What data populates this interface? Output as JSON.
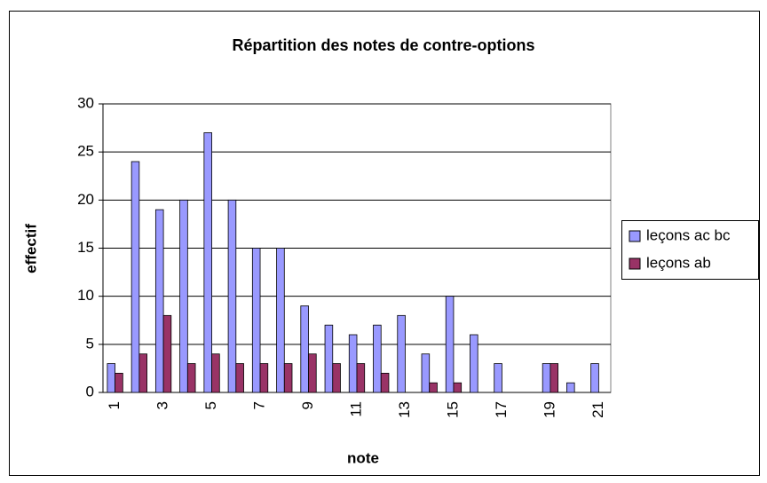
{
  "chart_data": {
    "type": "bar",
    "title": "Répartition des notes de contre-options",
    "x_label": "note",
    "y_label": "effectif",
    "categories": [
      "1",
      null,
      "3",
      null,
      "5",
      null,
      "7",
      null,
      "9",
      null,
      "11",
      null,
      "13",
      null,
      "15",
      null,
      "17",
      null,
      "19",
      null,
      "21"
    ],
    "series": [
      {
        "name": "leçons ac bc",
        "color": "#9999ff",
        "values": [
          3,
          24,
          19,
          20,
          27,
          20,
          15,
          15,
          9,
          7,
          6,
          7,
          8,
          4,
          10,
          6,
          3,
          0,
          3,
          1,
          3
        ]
      },
      {
        "name": "leçons ab",
        "color": "#993366",
        "values": [
          2,
          4,
          8,
          3,
          4,
          3,
          3,
          3,
          4,
          3,
          3,
          2,
          0,
          1,
          1,
          0,
          0,
          0,
          3,
          0,
          0
        ]
      }
    ],
    "ylim": [
      0,
      30
    ],
    "yticks": [
      0,
      5,
      10,
      15,
      20,
      25,
      30
    ],
    "grid": true,
    "legend": "right"
  }
}
